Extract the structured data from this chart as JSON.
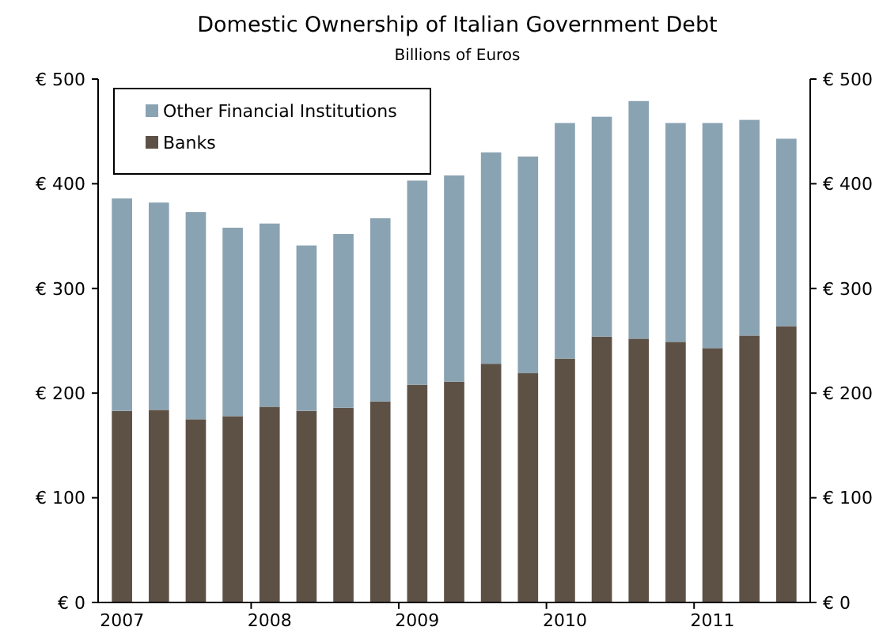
{
  "chart_data": {
    "type": "bar",
    "title": "Domestic Ownership of Italian Government Debt",
    "subtitle": "Billions of Euros",
    "categories": [
      "2007",
      null,
      null,
      null,
      "2008",
      null,
      null,
      null,
      "2009",
      null,
      null,
      null,
      "2010",
      null,
      null,
      null,
      "2011",
      null,
      null
    ],
    "stacked": true,
    "series": [
      {
        "name": "Banks",
        "color": "#5d5146",
        "values": [
          183,
          184,
          175,
          178,
          187,
          183,
          186,
          192,
          208,
          211,
          228,
          219,
          233,
          254,
          252,
          249,
          243,
          255,
          264
        ]
      },
      {
        "name": "Other Financial Institutions",
        "color": "#8aa3b2",
        "values": [
          203,
          198,
          198,
          180,
          175,
          158,
          166,
          175,
          195,
          197,
          202,
          207,
          225,
          210,
          227,
          209,
          215,
          206,
          179
        ]
      }
    ],
    "ylim": [
      0,
      500
    ],
    "yticks": [
      {
        "value": 0,
        "label": "€ 0"
      },
      {
        "value": 100,
        "label": "€ 100"
      },
      {
        "value": 200,
        "label": "€ 200"
      },
      {
        "value": 300,
        "label": "€ 300"
      },
      {
        "value": 400,
        "label": "€ 400"
      },
      {
        "value": 500,
        "label": "€ 500"
      }
    ],
    "y2lim": [
      0,
      500
    ],
    "y2ticks": [
      {
        "value": 0,
        "label": "€ 0"
      },
      {
        "value": 100,
        "label": "€ 100"
      },
      {
        "value": 200,
        "label": "€ 200"
      },
      {
        "value": 300,
        "label": "€ 300"
      },
      {
        "value": 400,
        "label": "€ 400"
      },
      {
        "value": 500,
        "label": "€ 500"
      }
    ],
    "legend": "top left",
    "grid": false
  }
}
